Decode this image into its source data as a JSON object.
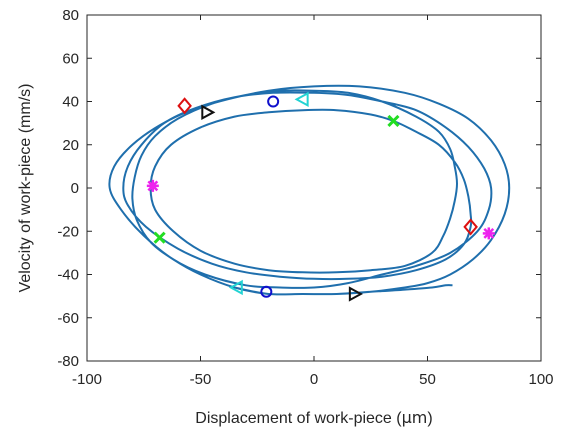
{
  "chart_data": {
    "type": "line",
    "xlabel_prefix": "Displacement of work-piece (",
    "xlabel_unit": "μm",
    "xlabel_suffix": ")",
    "ylabel": "Velocity of work-piece (mm/s)",
    "xlim": [
      -100,
      100
    ],
    "ylim": [
      -80,
      80
    ],
    "xticks": [
      -100,
      -50,
      0,
      50,
      100
    ],
    "yticks": [
      -80,
      -60,
      -40,
      -20,
      0,
      20,
      40,
      60,
      80
    ],
    "grid": false,
    "line_color": "#1f6fad",
    "series": [
      {
        "points": [
          [
            61,
            -45
          ],
          [
            58,
            -45
          ],
          [
            52,
            -46
          ],
          [
            40,
            -47
          ],
          [
            25,
            -48
          ],
          [
            10,
            -49
          ],
          [
            -5,
            -49
          ],
          [
            -20,
            -49
          ],
          [
            -35,
            -46
          ],
          [
            -50,
            -40
          ],
          [
            -62,
            -33
          ],
          [
            -72,
            -25
          ],
          [
            -78,
            -15
          ],
          [
            -80,
            -5
          ],
          [
            -79,
            5
          ],
          [
            -76,
            15
          ],
          [
            -70,
            24
          ],
          [
            -60,
            32
          ],
          [
            -45,
            39
          ],
          [
            -30,
            43
          ],
          [
            -15,
            45
          ],
          [
            0,
            45
          ],
          [
            15,
            44
          ],
          [
            30,
            40
          ],
          [
            45,
            33
          ],
          [
            55,
            26
          ],
          [
            60,
            18
          ],
          [
            62,
            10
          ],
          [
            63,
            2
          ],
          [
            62,
            -6
          ],
          [
            60,
            -14
          ],
          [
            57,
            -22
          ],
          [
            52,
            -30
          ],
          [
            40,
            -36
          ],
          [
            25,
            -38
          ],
          [
            10,
            -39
          ],
          [
            -5,
            -39
          ],
          [
            -20,
            -38
          ],
          [
            -35,
            -35
          ],
          [
            -50,
            -29
          ],
          [
            -62,
            -20
          ],
          [
            -70,
            -10
          ],
          [
            -72,
            0
          ],
          [
            -70,
            10
          ],
          [
            -63,
            20
          ],
          [
            -50,
            28
          ],
          [
            -35,
            33
          ],
          [
            -20,
            35
          ],
          [
            -5,
            36
          ],
          [
            10,
            36
          ],
          [
            25,
            34
          ],
          [
            35,
            31
          ],
          [
            45,
            26
          ],
          [
            55,
            20
          ],
          [
            62,
            12
          ],
          [
            66,
            4
          ],
          [
            68,
            -4
          ],
          [
            69,
            -12
          ],
          [
            69,
            -18
          ],
          [
            66,
            -26
          ],
          [
            58,
            -33
          ],
          [
            45,
            -38
          ],
          [
            30,
            -41
          ],
          [
            15,
            -42
          ],
          [
            0,
            -42
          ],
          [
            -15,
            -41
          ],
          [
            -30,
            -39
          ],
          [
            -45,
            -35
          ],
          [
            -60,
            -28
          ],
          [
            -74,
            -18
          ],
          [
            -82,
            -8
          ],
          [
            -84,
            0
          ],
          [
            -82,
            10
          ],
          [
            -76,
            20
          ],
          [
            -66,
            30
          ],
          [
            -52,
            37
          ],
          [
            -35,
            42
          ],
          [
            -18,
            44
          ],
          [
            0,
            44
          ],
          [
            15,
            43
          ],
          [
            30,
            40
          ],
          [
            45,
            36
          ],
          [
            58,
            28
          ],
          [
            68,
            19
          ],
          [
            75,
            9
          ],
          [
            78,
            0
          ],
          [
            77,
            -10
          ],
          [
            72,
            -20
          ],
          [
            60,
            -30
          ],
          [
            45,
            -36
          ],
          [
            30,
            -40
          ],
          [
            15,
            -44
          ],
          [
            0,
            -46
          ],
          [
            -15,
            -46
          ],
          [
            -30,
            -45
          ],
          [
            -48,
            -40
          ],
          [
            -62,
            -33
          ],
          [
            -75,
            -22
          ],
          [
            -85,
            -10
          ],
          [
            -90,
            0
          ],
          [
            -88,
            10
          ],
          [
            -80,
            20
          ],
          [
            -68,
            29
          ],
          [
            -54,
            36
          ],
          [
            -38,
            41
          ],
          [
            -20,
            45
          ],
          [
            0,
            47
          ],
          [
            20,
            47
          ],
          [
            40,
            44
          ],
          [
            55,
            39
          ],
          [
            68,
            32
          ],
          [
            78,
            22
          ],
          [
            84,
            11
          ],
          [
            86,
            0
          ],
          [
            84,
            -12
          ],
          [
            78,
            -24
          ],
          [
            70,
            -33
          ],
          [
            60,
            -40
          ],
          [
            50,
            -44
          ],
          [
            40,
            -46
          ],
          [
            25,
            -48
          ],
          [
            10,
            -49
          ],
          [
            -5,
            -49
          ],
          [
            -20,
            -49
          ],
          [
            -35,
            -46
          ]
        ]
      }
    ],
    "markers": [
      {
        "shape": "diamond",
        "color": "#dd1111",
        "x": -57,
        "y": 38
      },
      {
        "shape": "diamond",
        "color": "#dd1111",
        "x": 69,
        "y": -18
      },
      {
        "shape": "triangle-right",
        "color": "#111111",
        "x": -47,
        "y": 35
      },
      {
        "shape": "triangle-right",
        "color": "#111111",
        "x": 18,
        "y": -49
      },
      {
        "shape": "circle",
        "color": "#1010cc",
        "x": -18,
        "y": 40
      },
      {
        "shape": "circle",
        "color": "#1010cc",
        "x": -21,
        "y": -48
      },
      {
        "shape": "triangle-left",
        "color": "#22d3d3",
        "x": -5,
        "y": 41
      },
      {
        "shape": "triangle-left",
        "color": "#22d3d3",
        "x": -34,
        "y": -46
      },
      {
        "shape": "cross",
        "color": "#22dd22",
        "x": 35,
        "y": 31
      },
      {
        "shape": "cross",
        "color": "#22dd22",
        "x": -68,
        "y": -23
      },
      {
        "shape": "asterisk",
        "color": "#ee22ee",
        "x": -71,
        "y": 1
      },
      {
        "shape": "asterisk",
        "color": "#ee22ee",
        "x": 77,
        "y": -21
      }
    ]
  }
}
